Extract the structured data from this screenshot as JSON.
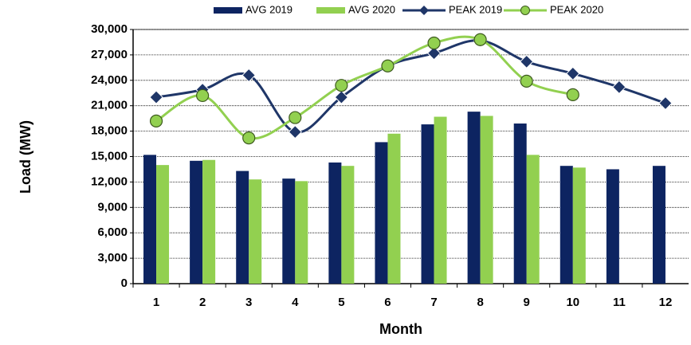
{
  "chart_data": {
    "type": "bar",
    "x_label": "Month",
    "y_label": "Load (MW)",
    "categories": [
      "1",
      "2",
      "3",
      "4",
      "5",
      "6",
      "7",
      "8",
      "9",
      "10",
      "11",
      "12"
    ],
    "series": [
      {
        "name": "AVG 2019",
        "type": "bar",
        "color": "#0d2461",
        "values": [
          15200,
          14500,
          13300,
          12400,
          14300,
          16700,
          18800,
          20300,
          18900,
          13900,
          13500,
          13900
        ]
      },
      {
        "name": "AVG 2020",
        "type": "bar",
        "color": "#92d050",
        "values": [
          14000,
          14600,
          12300,
          12100,
          13900,
          17700,
          19700,
          19800,
          15200,
          13700,
          null,
          null
        ]
      },
      {
        "name": "PEAK 2019",
        "type": "line",
        "marker": "diamond",
        "color": "#1f3668",
        "values": [
          22000,
          22900,
          24600,
          17900,
          22000,
          25700,
          27200,
          28700,
          26200,
          24800,
          23200,
          21300
        ]
      },
      {
        "name": "PEAK 2020",
        "type": "line",
        "marker": "circle",
        "color": "#92d050",
        "values": [
          19200,
          22200,
          17200,
          19600,
          23400,
          25700,
          28400,
          28800,
          23900,
          22300,
          null,
          null
        ]
      }
    ],
    "ylim": [
      0,
      30000
    ],
    "yticks": [
      0,
      {
        "value": 3000,
        "label": "3,000"
      },
      {
        "value": 6000,
        "label": "6,000"
      },
      {
        "value": 9000,
        "label": "9,000"
      },
      {
        "value": 12000,
        "label": "12,000"
      },
      {
        "value": 15000,
        "label": "15,000"
      },
      {
        "value": 18000,
        "label": "18,000"
      },
      {
        "value": 21000,
        "label": "21,000"
      },
      {
        "value": 24000,
        "label": "24,000"
      },
      {
        "value": 27000,
        "label": "27,000"
      },
      {
        "value": 30000,
        "label": "30,000"
      }
    ],
    "grid": true,
    "legend": "top"
  }
}
